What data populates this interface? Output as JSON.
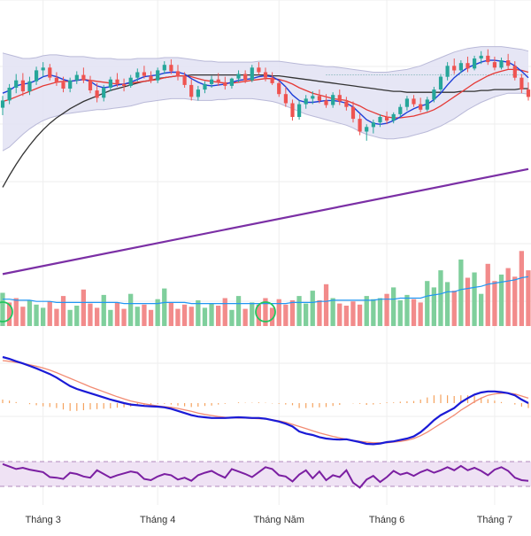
{
  "colors": {
    "up": "#26a69a",
    "down": "#ef5350",
    "vol_up": "#7fcf9c",
    "vol_down": "#f28b8b",
    "bb_fill": "#e2e2f3",
    "bb_line": "#b9b9d8",
    "ma_fast": "#1e3fd8",
    "ma_mid": "#e53935",
    "ma_slow": "#333333",
    "ma_long": "#7b2fa5",
    "vol_ma": "#2196f3",
    "macd": "#1a1ad6",
    "signal": "#f28b72",
    "hist": "#f5a25d",
    "rsi": "#7b1fa2",
    "rsi_band": "#efe2f4",
    "grid": "#eeeeee",
    "highlight": "#22c55e"
  },
  "chart_data": {
    "type": "candlestick",
    "x_axis_labels": [
      "Tháng 3",
      "Tháng 4",
      "Tháng Năm",
      "Tháng 6",
      "Tháng 7"
    ],
    "grid": true,
    "panels": [
      "price",
      "volume",
      "macd",
      "rsi"
    ],
    "price": {
      "series_order": "open, high, low, close per session",
      "candles": [
        [
          60.2,
          61.5,
          59.4,
          61.0
        ],
        [
          61.0,
          62.8,
          60.6,
          62.4
        ],
        [
          62.4,
          63.9,
          61.8,
          63.2
        ],
        [
          63.2,
          64.0,
          61.5,
          62.0
        ],
        [
          62.0,
          63.6,
          61.6,
          63.1
        ],
        [
          63.1,
          64.7,
          62.7,
          64.3
        ],
        [
          64.3,
          65.2,
          63.6,
          64.6
        ],
        [
          64.6,
          65.0,
          63.2,
          63.5
        ],
        [
          63.5,
          64.1,
          62.6,
          63.0
        ],
        [
          63.0,
          63.6,
          61.9,
          62.3
        ],
        [
          62.3,
          63.5,
          61.9,
          63.2
        ],
        [
          63.2,
          64.2,
          62.8,
          63.8
        ],
        [
          63.8,
          64.6,
          62.9,
          63.2
        ],
        [
          63.2,
          63.7,
          61.8,
          62.1
        ],
        [
          62.1,
          62.9,
          60.8,
          61.3
        ],
        [
          61.3,
          62.7,
          60.9,
          62.4
        ],
        [
          62.4,
          63.6,
          62.0,
          63.3
        ],
        [
          63.3,
          64.0,
          62.5,
          62.8
        ],
        [
          62.8,
          63.4,
          62.0,
          62.6
        ],
        [
          62.6,
          63.8,
          62.4,
          63.5
        ],
        [
          63.5,
          64.5,
          63.1,
          64.1
        ],
        [
          64.1,
          64.8,
          63.4,
          63.7
        ],
        [
          63.7,
          64.2,
          62.9,
          63.2
        ],
        [
          63.2,
          64.6,
          62.9,
          64.3
        ],
        [
          64.3,
          65.3,
          63.9,
          64.9
        ],
        [
          64.9,
          65.5,
          63.9,
          64.2
        ],
        [
          64.2,
          64.9,
          63.2,
          63.6
        ],
        [
          63.6,
          64.1,
          62.4,
          62.7
        ],
        [
          62.7,
          63.3,
          61.0,
          61.4
        ],
        [
          61.4,
          62.6,
          61.0,
          62.2
        ],
        [
          62.2,
          63.1,
          61.8,
          62.8
        ],
        [
          62.8,
          63.7,
          62.4,
          63.3
        ],
        [
          63.3,
          64.0,
          62.6,
          63.0
        ],
        [
          63.0,
          63.6,
          62.2,
          62.6
        ],
        [
          62.6,
          63.5,
          62.3,
          63.4
        ],
        [
          63.4,
          64.3,
          63.0,
          63.9
        ],
        [
          63.9,
          64.3,
          62.9,
          63.2
        ],
        [
          63.2,
          64.9,
          63.0,
          64.6
        ],
        [
          64.6,
          65.2,
          63.8,
          64.1
        ],
        [
          64.1,
          64.6,
          63.1,
          63.5
        ],
        [
          63.5,
          64.1,
          62.7,
          62.9
        ],
        [
          62.9,
          63.2,
          61.4,
          61.7
        ],
        [
          61.7,
          62.5,
          60.3,
          60.7
        ],
        [
          60.7,
          61.1,
          58.8,
          59.2
        ],
        [
          59.2,
          61.0,
          58.9,
          60.6
        ],
        [
          60.6,
          61.6,
          60.1,
          61.2
        ],
        [
          61.2,
          62.0,
          60.6,
          61.5
        ],
        [
          61.5,
          62.2,
          60.7,
          61.0
        ],
        [
          61.0,
          61.7,
          60.2,
          60.5
        ],
        [
          60.5,
          61.9,
          60.2,
          61.6
        ],
        [
          61.6,
          62.2,
          60.5,
          60.9
        ],
        [
          60.9,
          61.4,
          59.9,
          60.3
        ],
        [
          60.3,
          60.9,
          58.6,
          59.0
        ],
        [
          59.0,
          59.5,
          57.2,
          57.6
        ],
        [
          57.6,
          58.4,
          56.6,
          58.1
        ],
        [
          58.1,
          58.9,
          57.4,
          58.6
        ],
        [
          58.6,
          59.5,
          58.1,
          59.2
        ],
        [
          59.2,
          59.8,
          58.4,
          58.8
        ],
        [
          58.8,
          59.7,
          58.5,
          59.5
        ],
        [
          59.5,
          60.6,
          59.2,
          60.3
        ],
        [
          60.3,
          61.5,
          59.9,
          61.2
        ],
        [
          61.2,
          61.6,
          60.3,
          60.6
        ],
        [
          60.6,
          61.3,
          59.7,
          60.0
        ],
        [
          60.0,
          61.4,
          59.8,
          61.1
        ],
        [
          61.1,
          62.5,
          60.8,
          62.2
        ],
        [
          62.2,
          63.9,
          62.0,
          63.6
        ],
        [
          63.6,
          65.2,
          63.2,
          64.8
        ],
        [
          64.8,
          65.6,
          63.9,
          64.3
        ],
        [
          64.3,
          65.4,
          64.0,
          65.1
        ],
        [
          65.1,
          65.8,
          64.1,
          64.5
        ],
        [
          64.5,
          65.9,
          64.3,
          65.6
        ],
        [
          65.6,
          66.4,
          65.0,
          65.9
        ],
        [
          65.9,
          66.6,
          64.9,
          65.2
        ],
        [
          65.2,
          65.8,
          64.3,
          64.6
        ],
        [
          64.6,
          65.7,
          64.4,
          65.4
        ],
        [
          65.4,
          66.1,
          64.4,
          64.8
        ],
        [
          64.8,
          65.3,
          63.2,
          63.5
        ],
        [
          63.5,
          63.9,
          61.8,
          62.2
        ],
        [
          62.2,
          63.0,
          61.0,
          61.4
        ]
      ],
      "bollinger": {
        "upper": [
          66.2,
          66.0,
          65.8,
          65.6,
          65.6,
          65.7,
          65.9,
          66.0,
          66.0,
          65.9,
          65.8,
          65.8,
          65.8,
          65.7,
          65.6,
          65.6,
          65.6,
          65.5,
          65.5,
          65.5,
          65.6,
          65.6,
          65.6,
          65.6,
          65.7,
          65.7,
          65.7,
          65.6,
          65.5,
          65.4,
          65.3,
          65.3,
          65.2,
          65.2,
          65.2,
          65.2,
          65.2,
          65.2,
          65.3,
          65.3,
          65.3,
          65.3,
          65.2,
          65.1,
          65.0,
          64.9,
          64.9,
          64.8,
          64.7,
          64.7,
          64.6,
          64.5,
          64.4,
          64.3,
          64.2,
          64.1,
          64.1,
          64.1,
          64.2,
          64.3,
          64.4,
          64.6,
          64.8,
          65.1,
          65.4,
          65.7,
          66.0,
          66.3,
          66.5,
          66.7,
          66.8,
          66.9,
          66.9,
          66.9,
          66.9,
          66.8,
          66.7,
          66.6,
          66.4
        ],
        "lower": [
          55.5,
          55.9,
          56.6,
          57.3,
          57.9,
          58.4,
          58.8,
          59.1,
          59.3,
          59.5,
          59.6,
          59.7,
          59.8,
          59.9,
          60.0,
          60.0,
          60.1,
          60.2,
          60.3,
          60.4,
          60.6,
          60.8,
          60.9,
          61.0,
          61.1,
          61.2,
          61.2,
          61.2,
          61.1,
          61.0,
          61.0,
          61.0,
          61.1,
          61.1,
          61.2,
          61.2,
          61.2,
          61.2,
          61.1,
          61.0,
          60.9,
          60.7,
          60.4,
          60.1,
          59.8,
          59.5,
          59.3,
          59.1,
          58.9,
          58.7,
          58.5,
          58.3,
          58.0,
          57.6,
          57.3,
          57.1,
          56.9,
          56.8,
          56.8,
          56.9,
          57.0,
          57.2,
          57.4,
          57.6,
          57.9,
          58.2,
          58.6,
          59.0,
          59.5,
          60.0,
          60.4,
          60.8,
          61.1,
          61.4,
          61.6,
          61.8,
          61.8,
          61.8,
          61.7
        ]
      },
      "ma_fast": [
        61.8,
        62.1,
        62.6,
        62.8,
        62.9,
        63.2,
        63.6,
        63.8,
        63.6,
        63.3,
        63.1,
        63.2,
        63.3,
        63.1,
        62.6,
        62.4,
        62.5,
        62.7,
        62.8,
        63.0,
        63.3,
        63.6,
        63.7,
        63.8,
        64.0,
        64.1,
        64.1,
        63.9,
        63.4,
        63.0,
        62.7,
        62.6,
        62.7,
        62.8,
        63.0,
        63.2,
        63.3,
        63.4,
        63.6,
        63.7,
        63.6,
        63.2,
        62.5,
        61.6,
        61.0,
        60.8,
        60.8,
        60.9,
        61.0,
        61.0,
        60.9,
        60.7,
        60.3,
        59.6,
        58.9,
        58.5,
        58.4,
        58.5,
        58.8,
        59.2,
        59.7,
        60.1,
        60.4,
        60.6,
        61.1,
        61.8,
        62.7,
        63.5,
        64.1,
        64.6,
        64.9,
        65.2,
        65.4,
        65.4,
        65.3,
        65.2,
        64.8,
        64.2,
        63.5
      ],
      "ma_mid": [
        60.9,
        61.1,
        61.4,
        61.7,
        62.0,
        62.3,
        62.6,
        62.8,
        63.0,
        63.1,
        63.1,
        63.2,
        63.3,
        63.2,
        63.1,
        63.0,
        62.9,
        62.8,
        62.8,
        62.9,
        63.0,
        63.1,
        63.2,
        63.3,
        63.5,
        63.6,
        63.7,
        63.7,
        63.6,
        63.4,
        63.2,
        63.1,
        63.0,
        62.9,
        62.9,
        63.0,
        63.1,
        63.2,
        63.3,
        63.4,
        63.4,
        63.3,
        63.1,
        62.8,
        62.4,
        62.1,
        61.8,
        61.6,
        61.4,
        61.2,
        61.1,
        61.0,
        60.7,
        60.4,
        60.0,
        59.7,
        59.4,
        59.2,
        59.1,
        59.1,
        59.2,
        59.3,
        59.5,
        59.7,
        60.0,
        60.4,
        60.9,
        61.4,
        61.9,
        62.4,
        62.9,
        63.3,
        63.7,
        64.0,
        64.2,
        64.4,
        64.4,
        64.3,
        64.1
      ],
      "ma_slow": [
        51.5,
        52.8,
        54.0,
        55.1,
        56.1,
        57.0,
        57.8,
        58.5,
        59.1,
        59.6,
        60.1,
        60.5,
        60.9,
        61.2,
        61.5,
        61.8,
        62.1,
        62.3,
        62.5,
        62.7,
        62.9,
        63.1,
        63.2,
        63.4,
        63.5,
        63.6,
        63.7,
        63.7,
        63.8,
        63.8,
        63.8,
        63.8,
        63.8,
        63.8,
        63.8,
        63.8,
        63.8,
        63.8,
        63.8,
        63.8,
        63.7,
        63.7,
        63.6,
        63.5,
        63.4,
        63.3,
        63.2,
        63.1,
        63.0,
        62.9,
        62.8,
        62.7,
        62.6,
        62.5,
        62.4,
        62.3,
        62.2,
        62.1,
        62.0,
        62.0,
        61.9,
        61.9,
        61.9,
        61.9,
        61.9,
        61.9,
        61.9,
        61.9,
        62.0,
        62.0,
        62.0,
        62.1,
        62.1,
        62.2,
        62.2,
        62.2,
        62.2,
        62.3,
        62.3
      ],
      "ma_long_start": 42.0,
      "ma_long_end": 53.5,
      "reference_level": 63.8
    },
    "volume": {
      "up_flags": [
        1,
        0,
        0,
        0,
        1,
        1,
        1,
        0,
        0,
        0,
        1,
        1,
        0,
        0,
        0,
        1,
        1,
        0,
        0,
        1,
        1,
        0,
        0,
        1,
        1,
        0,
        0,
        0,
        0,
        1,
        1,
        1,
        0,
        0,
        1,
        1,
        0,
        1,
        0,
        0,
        0,
        0,
        0,
        0,
        1,
        1,
        1,
        0,
        0,
        1,
        0,
        0,
        0,
        0,
        1,
        1,
        1,
        0,
        1,
        1,
        1,
        0,
        0,
        1,
        1,
        1,
        1,
        0,
        1,
        0,
        1,
        1,
        0,
        0,
        1,
        0,
        0,
        0,
        0
      ],
      "values": [
        3.1,
        2.2,
        2.6,
        1.8,
        2.4,
        2.0,
        1.7,
        2.3,
        1.6,
        2.8,
        1.5,
        1.9,
        3.4,
        2.1,
        1.7,
        2.9,
        1.5,
        2.2,
        1.6,
        3.0,
        1.8,
        2.0,
        1.5,
        2.5,
        3.5,
        2.2,
        1.6,
        2.0,
        1.8,
        2.4,
        1.7,
        2.1,
        1.9,
        2.6,
        1.5,
        2.8,
        1.6,
        2.2,
        2.0,
        2.6,
        1.7,
        2.5,
        2.0,
        2.4,
        2.8,
        2.1,
        3.3,
        2.4,
        3.9,
        2.6,
        2.1,
        1.9,
        2.3,
        2.0,
        2.8,
        2.5,
        2.6,
        3.0,
        3.6,
        2.4,
        2.9,
        2.5,
        2.2,
        4.2,
        3.6,
        5.2,
        4.1,
        3.3,
        6.2,
        4.5,
        5.0,
        3.0,
        5.8,
        4.2,
        4.8,
        5.4,
        4.6,
        7.0,
        5.2
      ],
      "ma": [
        2.5,
        2.5,
        2.4,
        2.4,
        2.4,
        2.3,
        2.3,
        2.3,
        2.2,
        2.2,
        2.2,
        2.2,
        2.2,
        2.2,
        2.2,
        2.2,
        2.2,
        2.2,
        2.1,
        2.1,
        2.1,
        2.1,
        2.1,
        2.1,
        2.2,
        2.2,
        2.2,
        2.2,
        2.1,
        2.1,
        2.1,
        2.1,
        2.1,
        2.1,
        2.1,
        2.1,
        2.1,
        2.1,
        2.1,
        2.1,
        2.1,
        2.1,
        2.1,
        2.2,
        2.2,
        2.2,
        2.2,
        2.3,
        2.3,
        2.4,
        2.4,
        2.4,
        2.4,
        2.4,
        2.4,
        2.4,
        2.5,
        2.5,
        2.5,
        2.6,
        2.6,
        2.6,
        2.6,
        2.8,
        2.9,
        3.0,
        3.2,
        3.2,
        3.4,
        3.5,
        3.6,
        3.7,
        3.9,
        4.0,
        4.1,
        4.2,
        4.3,
        4.5,
        4.6
      ]
    },
    "macd": {
      "macd_line": [
        1.3,
        1.25,
        1.18,
        1.12,
        1.05,
        0.98,
        0.9,
        0.82,
        0.72,
        0.6,
        0.48,
        0.4,
        0.34,
        0.28,
        0.22,
        0.16,
        0.1,
        0.05,
        0.0,
        -0.04,
        -0.06,
        -0.08,
        -0.09,
        -0.1,
        -0.12,
        -0.16,
        -0.22,
        -0.28,
        -0.34,
        -0.38,
        -0.4,
        -0.42,
        -0.42,
        -0.42,
        -0.41,
        -0.4,
        -0.41,
        -0.42,
        -0.42,
        -0.44,
        -0.48,
        -0.52,
        -0.58,
        -0.66,
        -0.8,
        -0.86,
        -0.9,
        -0.96,
        -1.0,
        -1.02,
        -1.03,
        -1.02,
        -1.06,
        -1.1,
        -1.15,
        -1.16,
        -1.14,
        -1.1,
        -1.08,
        -1.04,
        -1.0,
        -0.94,
        -0.82,
        -0.66,
        -0.48,
        -0.34,
        -0.24,
        -0.14,
        0.02,
        0.14,
        0.24,
        0.3,
        0.33,
        0.33,
        0.31,
        0.28,
        0.22,
        0.1,
        0.0
      ],
      "signal_line": [
        1.2,
        1.18,
        1.15,
        1.12,
        1.08,
        1.04,
        0.99,
        0.93,
        0.86,
        0.78,
        0.7,
        0.62,
        0.54,
        0.46,
        0.39,
        0.32,
        0.25,
        0.18,
        0.12,
        0.06,
        0.02,
        -0.02,
        -0.05,
        -0.08,
        -0.1,
        -0.12,
        -0.15,
        -0.19,
        -0.23,
        -0.28,
        -0.32,
        -0.35,
        -0.38,
        -0.4,
        -0.41,
        -0.42,
        -0.42,
        -0.43,
        -0.44,
        -0.45,
        -0.47,
        -0.5,
        -0.54,
        -0.6,
        -0.66,
        -0.72,
        -0.78,
        -0.84,
        -0.89,
        -0.94,
        -0.98,
        -1.02,
        -1.05,
        -1.08,
        -1.1,
        -1.12,
        -1.12,
        -1.12,
        -1.1,
        -1.08,
        -1.05,
        -1.0,
        -0.92,
        -0.82,
        -0.7,
        -0.58,
        -0.46,
        -0.34,
        -0.2,
        -0.08,
        0.04,
        0.14,
        0.22,
        0.26,
        0.28,
        0.28,
        0.26,
        0.2,
        0.14
      ]
    },
    "rsi": {
      "upper_band": 70,
      "lower_band": 30,
      "values": [
        66,
        62,
        58,
        60,
        57,
        55,
        53,
        45,
        44,
        42,
        52,
        50,
        46,
        44,
        56,
        50,
        44,
        48,
        51,
        54,
        52,
        42,
        40,
        46,
        50,
        48,
        41,
        44,
        39,
        48,
        52,
        55,
        49,
        44,
        58,
        54,
        50,
        45,
        53,
        61,
        58,
        48,
        46,
        38,
        49,
        56,
        43,
        54,
        40,
        48,
        45,
        56,
        36,
        28,
        41,
        47,
        37,
        45,
        55,
        49,
        52,
        47,
        53,
        57,
        52,
        56,
        61,
        56,
        63,
        56,
        60,
        55,
        48,
        57,
        61,
        55,
        44,
        40,
        39
      ]
    }
  }
}
